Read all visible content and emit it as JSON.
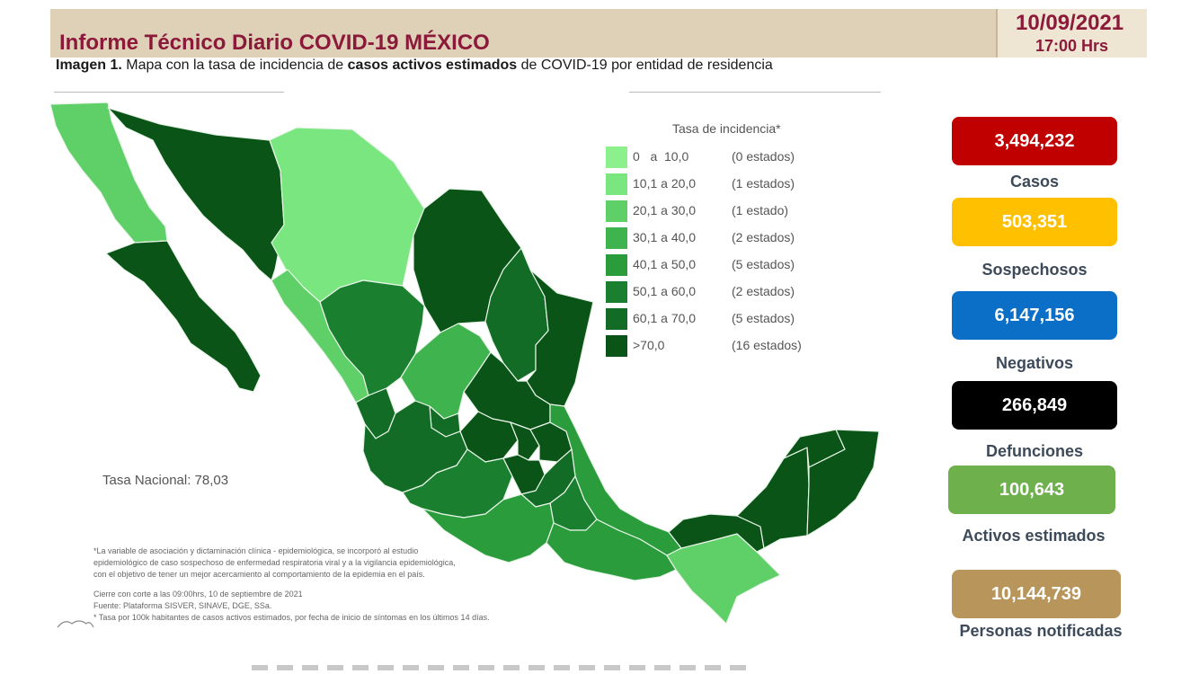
{
  "header": {
    "title": "Informe Técnico Diario COVID-19 MÉXICO",
    "date": "10/09/2021",
    "time": "17:00 Hrs"
  },
  "caption": {
    "prefix": "Imagen 1.",
    "part1": " Mapa con la tasa de incidencia de ",
    "bold": "casos activos estimados",
    "part2": " de COVID-19 por entidad de residencia"
  },
  "legend": {
    "title": "Tasa de incidencia*",
    "items": [
      {
        "range": "0   a  10,0",
        "count": "(0 estados)",
        "color": "#8cf08c"
      },
      {
        "range": "10,1 a 20,0",
        "count": "(1 estados)",
        "color": "#7ae67f"
      },
      {
        "range": "20,1 a 30,0",
        "count": "(1 estado)",
        "color": "#5fcf68"
      },
      {
        "range": "30,1 a 40,0",
        "count": "(2 estados)",
        "color": "#3fb44e"
      },
      {
        "range": "40,1 a 50,0",
        "count": "(5 estados)",
        "color": "#2a9c3c"
      },
      {
        "range": "50,1 a 60,0",
        "count": "(2 estados)",
        "color": "#1a8030"
      },
      {
        "range": "60,1 a 70,0",
        "count": "(5 estados)",
        "color": "#126c25"
      },
      {
        "range": ">70,0",
        "count": "(16 estados)",
        "color": "#0a5418"
      }
    ]
  },
  "tasa_nacional": "Tasa Nacional: 78,03",
  "notes": {
    "asterisk_1": "*La variable de asociación y dictaminación clínica - epidemiológica, se incorporó al estudio",
    "asterisk_2": "epidemiológico de caso sospechoso de enfermedad respiratoria viral y a la vigilancia epidemiológica,",
    "asterisk_3": "con el objetivo de tener un mejor acercamiento al comportamiento de la epidemia en el país.",
    "cierre": "Cierre con corte a las 09:00hrs, 10 de septiembre de 2021",
    "fuente": "Fuente: Plataforma SISVER, SINAVE, DGE, SSa.",
    "tasa_note": "* Tasa por 100k habitantes de casos activos estimados, por fecha de inicio de síntomas en los últimos 14 días."
  },
  "stats": [
    {
      "value": "3,494,232",
      "label": "Casos",
      "color": "#c00000"
    },
    {
      "value": "503,351",
      "label": "Sospechosos",
      "color": "#ffc000"
    },
    {
      "value": "6,147,156",
      "label": "Negativos",
      "color": "#0b6fc8"
    },
    {
      "value": "266,849",
      "label": "Defunciones",
      "color": "#000000"
    },
    {
      "value": "100,643",
      "label": "Activos estimados",
      "color": "#6db04c"
    },
    {
      "value": "10,144,739",
      "label": "Personas notificadas",
      "color": "#b8955a"
    }
  ],
  "map": {
    "regions": [
      {
        "name": "baja-california",
        "color": "#5fcf68"
      },
      {
        "name": "baja-california-sur",
        "color": "#0a5418"
      },
      {
        "name": "sonora",
        "color": "#0a5418"
      },
      {
        "name": "chihuahua",
        "color": "#7ae67f"
      },
      {
        "name": "coahuila",
        "color": "#0a5418"
      },
      {
        "name": "nuevo-leon",
        "color": "#126c25"
      },
      {
        "name": "tamaulipas",
        "color": "#0a5418"
      },
      {
        "name": "sinaloa",
        "color": "#5fcf68"
      },
      {
        "name": "durango",
        "color": "#1a8030"
      },
      {
        "name": "zacatecas",
        "color": "#3fb44e"
      },
      {
        "name": "san-luis-potosi",
        "color": "#0a5418"
      },
      {
        "name": "nayarit",
        "color": "#126c25"
      },
      {
        "name": "aguascalientes",
        "color": "#126c25"
      },
      {
        "name": "jalisco",
        "color": "#126c25"
      },
      {
        "name": "guanajuato",
        "color": "#0a5418"
      },
      {
        "name": "queretaro",
        "color": "#0a5418"
      },
      {
        "name": "hidalgo",
        "color": "#0a5418"
      },
      {
        "name": "veracruz",
        "color": "#2a9c3c"
      },
      {
        "name": "colima-michoacan",
        "color": "#1a8030"
      },
      {
        "name": "mexico-cdmx",
        "color": "#0a5418"
      },
      {
        "name": "morelos-tlaxcala",
        "color": "#126c25"
      },
      {
        "name": "puebla",
        "color": "#1a8030"
      },
      {
        "name": "guerrero",
        "color": "#2a9c3c"
      },
      {
        "name": "oaxaca",
        "color": "#2a9c3c"
      },
      {
        "name": "chiapas",
        "color": "#5fcf68"
      },
      {
        "name": "tabasco",
        "color": "#0a5418"
      },
      {
        "name": "campeche",
        "color": "#0a5418"
      },
      {
        "name": "yucatan",
        "color": "#0a5418"
      },
      {
        "name": "quintana-roo",
        "color": "#0a5418"
      }
    ]
  }
}
